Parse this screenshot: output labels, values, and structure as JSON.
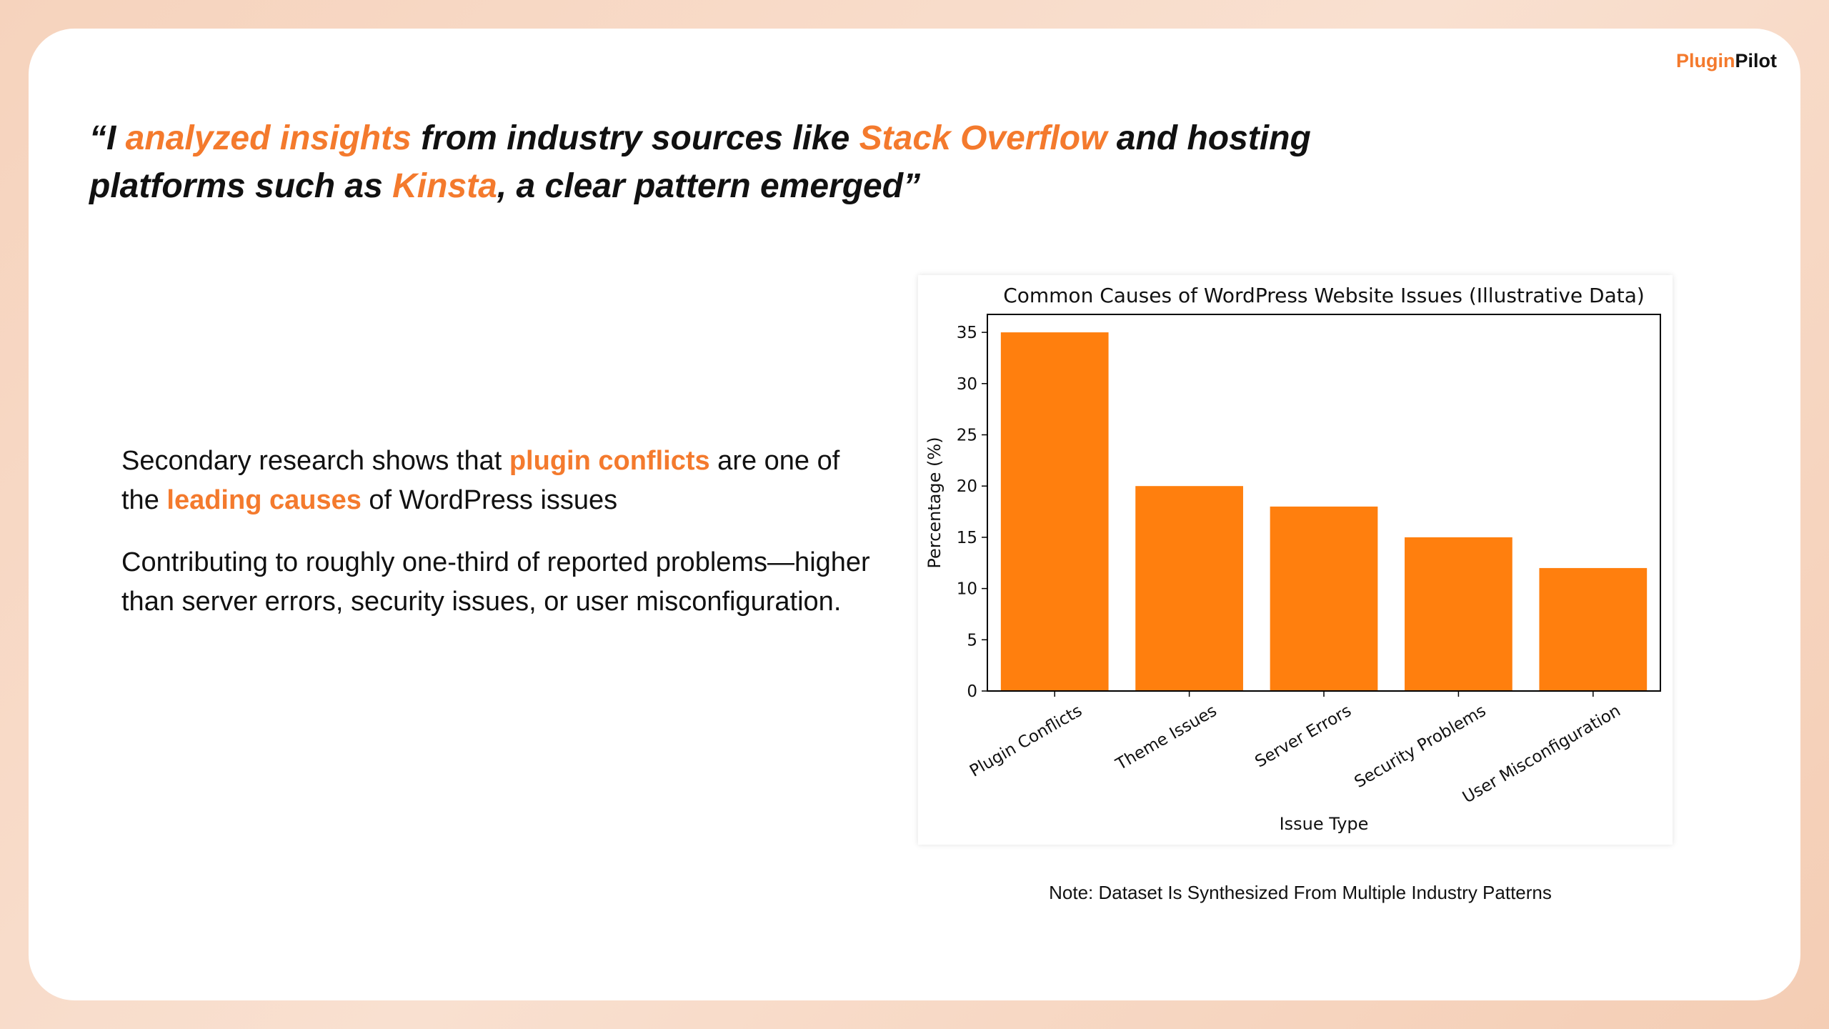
{
  "brand": {
    "part1": "Plugin",
    "part2": "Pilot",
    "accent": "#f47a2d"
  },
  "quote": {
    "t1": "“I ",
    "h1": "analyzed insights",
    "t2": " from industry sources like ",
    "h2": "Stack Overflow",
    "t3": " and hosting platforms such as ",
    "h3": "Kinsta",
    "t4": ", a clear pattern emerged”"
  },
  "body": {
    "p1": {
      "t1": "Secondary research shows that ",
      "h1": "plugin conflicts",
      "t2": " are one of the ",
      "h2": "leading causes",
      "t3": " of WordPress issues"
    },
    "p2": "Contributing to roughly one-third of reported problems—higher than server errors, security issues, or user misconfiguration."
  },
  "note": "Note: Dataset Is Synthesized From Multiple Industry Patterns",
  "chart_data": {
    "type": "bar",
    "title": "Common Causes of WordPress Website Issues (Illustrative Data)",
    "xlabel": "Issue Type",
    "ylabel": "Percentage (%)",
    "categories": [
      "Plugin Conflicts",
      "Theme Issues",
      "Server Errors",
      "Security Problems",
      "User Misconfiguration"
    ],
    "values": [
      35,
      20,
      18,
      15,
      12
    ],
    "yticks": [
      0,
      5,
      10,
      15,
      20,
      25,
      30,
      35
    ],
    "ylim": [
      0,
      36.75
    ],
    "color": "#ff7f0e",
    "grid": false
  }
}
